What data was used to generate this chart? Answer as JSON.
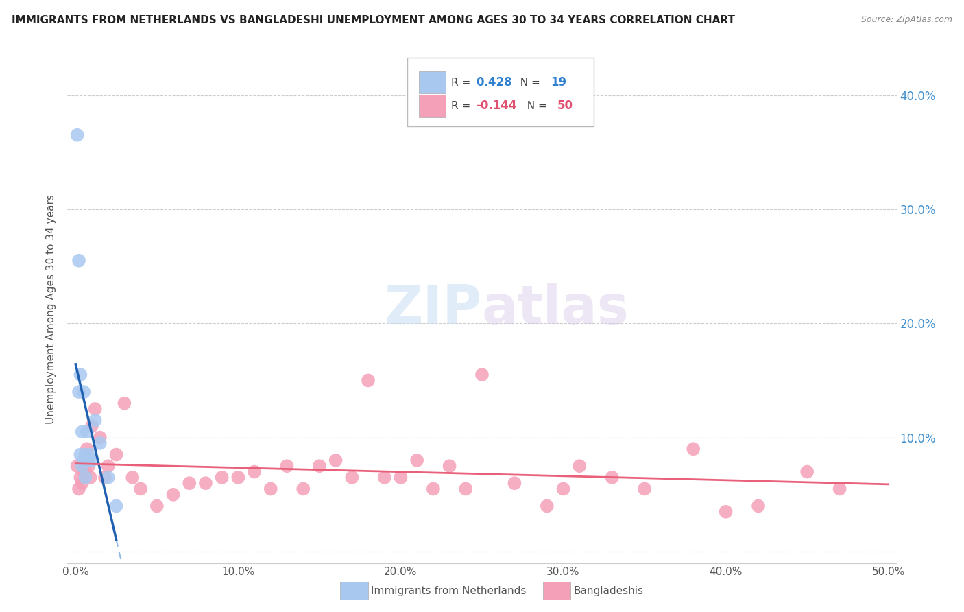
{
  "title": "IMMIGRANTS FROM NETHERLANDS VS BANGLADESHI UNEMPLOYMENT AMONG AGES 30 TO 34 YEARS CORRELATION CHART",
  "source": "Source: ZipAtlas.com",
  "ylabel": "Unemployment Among Ages 30 to 34 years",
  "ytick_vals": [
    0.0,
    0.1,
    0.2,
    0.3,
    0.4
  ],
  "ytick_labels_right": [
    "",
    "10.0%",
    "20.0%",
    "30.0%",
    "40.0%"
  ],
  "xlim": [
    -0.005,
    0.505
  ],
  "ylim": [
    -0.01,
    0.435
  ],
  "watermark": "ZIPatlas",
  "legend_blue_R": "0.428",
  "legend_blue_N": "19",
  "legend_pink_R": "-0.144",
  "legend_pink_N": "50",
  "blue_scatter_color": "#a8c8f0",
  "pink_scatter_color": "#f4a0b8",
  "blue_line_color": "#2060b0",
  "pink_line_color": "#e8607a",
  "blue_dash_color": "#90b8e8",
  "netherlands_x": [
    0.001,
    0.002,
    0.002,
    0.003,
    0.003,
    0.004,
    0.004,
    0.005,
    0.005,
    0.006,
    0.006,
    0.007,
    0.008,
    0.009,
    0.01,
    0.012,
    0.015,
    0.02,
    0.025
  ],
  "netherlands_y": [
    0.365,
    0.255,
    0.14,
    0.155,
    0.085,
    0.105,
    0.075,
    0.14,
    0.08,
    0.085,
    0.065,
    0.105,
    0.08,
    0.085,
    0.08,
    0.115,
    0.095,
    0.065,
    0.04
  ],
  "bangladeshi_x": [
    0.001,
    0.002,
    0.003,
    0.004,
    0.005,
    0.006,
    0.007,
    0.008,
    0.009,
    0.01,
    0.012,
    0.015,
    0.018,
    0.02,
    0.025,
    0.03,
    0.035,
    0.04,
    0.05,
    0.06,
    0.07,
    0.08,
    0.09,
    0.1,
    0.11,
    0.12,
    0.13,
    0.14,
    0.15,
    0.16,
    0.17,
    0.18,
    0.19,
    0.2,
    0.21,
    0.22,
    0.23,
    0.24,
    0.25,
    0.27,
    0.29,
    0.3,
    0.31,
    0.33,
    0.35,
    0.38,
    0.4,
    0.42,
    0.45,
    0.47
  ],
  "bangladeshi_y": [
    0.075,
    0.055,
    0.065,
    0.06,
    0.07,
    0.07,
    0.09,
    0.075,
    0.065,
    0.11,
    0.125,
    0.1,
    0.065,
    0.075,
    0.085,
    0.13,
    0.065,
    0.055,
    0.04,
    0.05,
    0.06,
    0.06,
    0.065,
    0.065,
    0.07,
    0.055,
    0.075,
    0.055,
    0.075,
    0.08,
    0.065,
    0.15,
    0.065,
    0.065,
    0.08,
    0.055,
    0.075,
    0.055,
    0.155,
    0.06,
    0.04,
    0.055,
    0.075,
    0.065,
    0.055,
    0.09,
    0.035,
    0.04,
    0.07,
    0.055
  ]
}
